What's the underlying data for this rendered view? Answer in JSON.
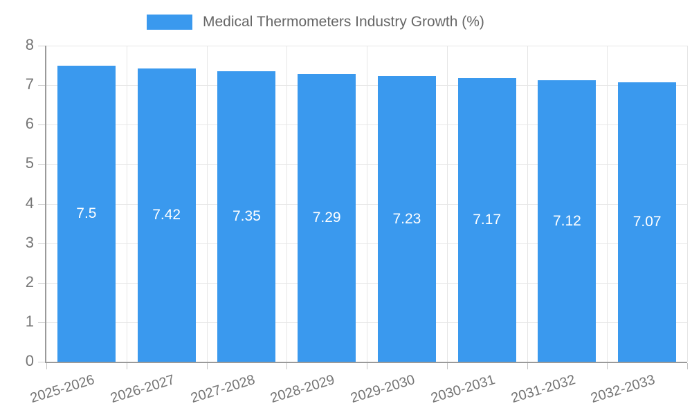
{
  "page": {
    "background_color": "#ffffff"
  },
  "legend": {
    "label": "Medical Thermometers Industry Growth (%)",
    "swatch_color": "#3A99EE"
  },
  "chart_data": {
    "type": "bar",
    "title": "Medical Thermometers Industry Growth (%)",
    "categories": [
      "2025-2026",
      "2026-2027",
      "2027-2028",
      "2028-2029",
      "2029-2030",
      "2030-2031",
      "2031-2032",
      "2032-2033"
    ],
    "values": [
      7.5,
      7.42,
      7.35,
      7.29,
      7.23,
      7.17,
      7.12,
      7.07
    ],
    "value_labels": [
      "7.5",
      "7.42",
      "7.35",
      "7.29",
      "7.23",
      "7.17",
      "7.12",
      "7.07"
    ],
    "xlabel": "",
    "ylabel": "",
    "ylim": [
      0,
      8
    ],
    "yticks": [
      0,
      1,
      2,
      3,
      4,
      5,
      6,
      7,
      8
    ],
    "grid": true,
    "legend_position": "top",
    "bar_color": "#3A99EE",
    "value_label_color": "#ffffff",
    "axis_text_color": "#757575",
    "legend_text_color": "#666666",
    "gridline_color": "#e6e6e6",
    "axis_line_color": "#9a9a9a"
  }
}
